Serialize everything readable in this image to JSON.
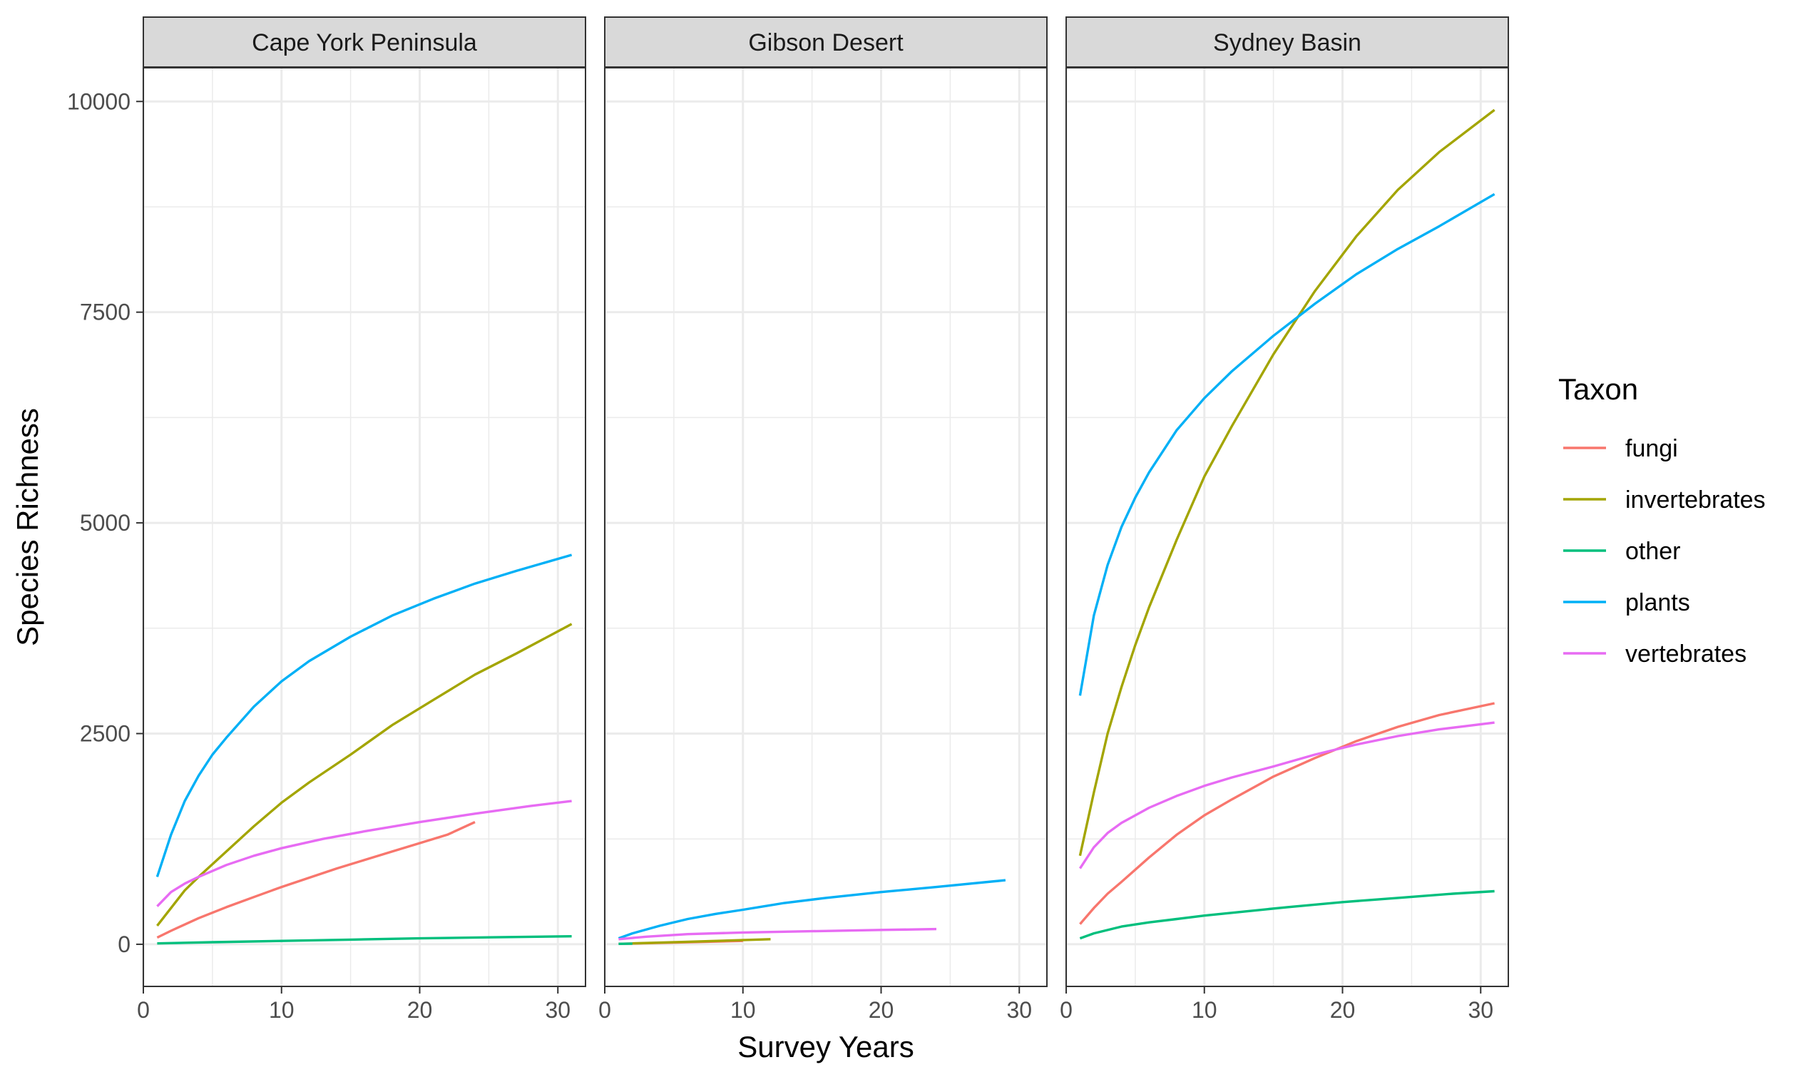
{
  "chart_data": {
    "type": "line",
    "facet_variable": "region",
    "xlabel": "Survey Years",
    "ylabel": "Species Richness",
    "xlim": [
      0,
      32
    ],
    "ylim": [
      -500,
      10400
    ],
    "x_ticks": [
      0,
      10,
      20,
      30
    ],
    "y_ticks": [
      0,
      2500,
      5000,
      7500,
      10000
    ],
    "grid": true,
    "legend": {
      "title": "Taxon",
      "placement": "right",
      "entries": [
        "fungi",
        "invertebrates",
        "other",
        "plants",
        "vertebrates"
      ]
    },
    "colors": {
      "fungi": "#F8766D",
      "invertebrates": "#A3A500",
      "other": "#00BF7D",
      "plants": "#00B0F6",
      "vertebrates": "#E76BF3"
    },
    "facets": [
      {
        "title": "Cape York Peninsula",
        "series": [
          {
            "name": "fungi",
            "x": [
              1,
              2,
              4,
              6,
              8,
              10,
              12,
              14,
              16,
              18,
              20,
              22,
              24
            ],
            "y": [
              80,
              160,
              310,
              440,
              560,
              680,
              790,
              900,
              1000,
              1100,
              1200,
              1300,
              1450
            ]
          },
          {
            "name": "invertebrates",
            "x": [
              1,
              2,
              3,
              4,
              6,
              8,
              10,
              12,
              15,
              18,
              21,
              24,
              27,
              31
            ],
            "y": [
              220,
              430,
              640,
              800,
              1100,
              1400,
              1680,
              1920,
              2250,
              2600,
              2900,
              3200,
              3450,
              3800
            ]
          },
          {
            "name": "other",
            "x": [
              1,
              5,
              10,
              15,
              20,
              25,
              31
            ],
            "y": [
              10,
              25,
              40,
              55,
              70,
              82,
              95
            ]
          },
          {
            "name": "plants",
            "x": [
              1,
              2,
              3,
              4,
              5,
              6,
              8,
              10,
              12,
              15,
              18,
              21,
              24,
              27,
              31
            ],
            "y": [
              800,
              1300,
              1700,
              2000,
              2250,
              2450,
              2820,
              3120,
              3360,
              3650,
              3900,
              4100,
              4280,
              4430,
              4620
            ]
          },
          {
            "name": "vertebrates",
            "x": [
              1,
              2,
              3,
              4,
              6,
              8,
              10,
              13,
              16,
              20,
              24,
              28,
              31
            ],
            "y": [
              450,
              620,
              720,
              800,
              940,
              1050,
              1140,
              1250,
              1340,
              1450,
              1550,
              1640,
              1700
            ]
          }
        ]
      },
      {
        "title": "Gibson Desert",
        "series": [
          {
            "name": "fungi",
            "x": [
              1,
              5,
              10
            ],
            "y": [
              5,
              20,
              40
            ]
          },
          {
            "name": "invertebrates",
            "x": [
              2,
              6,
              12
            ],
            "y": [
              10,
              30,
              60
            ]
          },
          {
            "name": "other",
            "x": [
              1,
              2
            ],
            "y": [
              5,
              8
            ]
          },
          {
            "name": "plants",
            "x": [
              1,
              2,
              4,
              6,
              8,
              10,
              13,
              16,
              20,
              24,
              29
            ],
            "y": [
              70,
              130,
              220,
              300,
              360,
              410,
              490,
              550,
              620,
              680,
              760
            ]
          },
          {
            "name": "vertebrates",
            "x": [
              1,
              3,
              6,
              10,
              15,
              20,
              24
            ],
            "y": [
              60,
              90,
              120,
              140,
              155,
              170,
              180
            ]
          }
        ]
      },
      {
        "title": "Sydney Basin",
        "series": [
          {
            "name": "fungi",
            "x": [
              1,
              2,
              3,
              4,
              6,
              8,
              10,
              12,
              15,
              18,
              21,
              24,
              27,
              31
            ],
            "y": [
              240,
              430,
              600,
              740,
              1030,
              1300,
              1530,
              1720,
              1990,
              2210,
              2410,
              2580,
              2720,
              2860
            ]
          },
          {
            "name": "invertebrates",
            "x": [
              1,
              2,
              3,
              4,
              5,
              6,
              8,
              10,
              12,
              15,
              18,
              21,
              24,
              27,
              31
            ],
            "y": [
              1050,
              1800,
              2500,
              3050,
              3550,
              4000,
              4800,
              5550,
              6150,
              7000,
              7750,
              8400,
              8950,
              9400,
              9900
            ]
          },
          {
            "name": "other",
            "x": [
              1,
              2,
              4,
              6,
              8,
              10,
              13,
              16,
              20,
              24,
              28,
              31
            ],
            "y": [
              70,
              130,
              210,
              260,
              300,
              340,
              390,
              440,
              500,
              550,
              600,
              630
            ]
          },
          {
            "name": "plants",
            "x": [
              1,
              2,
              3,
              4,
              5,
              6,
              8,
              10,
              12,
              15,
              18,
              21,
              24,
              27,
              31
            ],
            "y": [
              2950,
              3900,
              4500,
              4950,
              5300,
              5600,
              6100,
              6480,
              6800,
              7220,
              7600,
              7950,
              8250,
              8520,
              8900
            ]
          },
          {
            "name": "vertebrates",
            "x": [
              1,
              2,
              3,
              4,
              6,
              8,
              10,
              12,
              15,
              18,
              21,
              24,
              27,
              31
            ],
            "y": [
              900,
              1150,
              1320,
              1440,
              1620,
              1760,
              1880,
              1980,
              2110,
              2250,
              2370,
              2470,
              2550,
              2630
            ]
          }
        ]
      }
    ]
  }
}
